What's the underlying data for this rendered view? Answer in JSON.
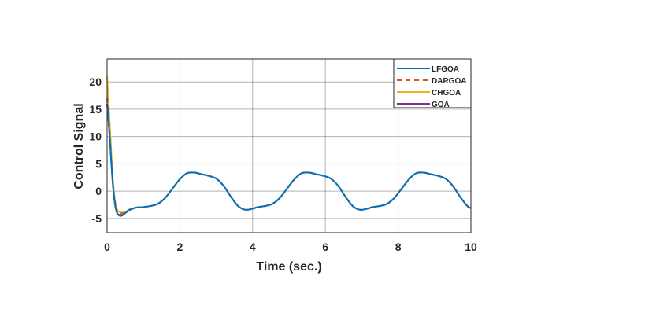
{
  "chart_data": {
    "type": "line",
    "title": "",
    "xlabel": "Time (sec.)",
    "ylabel": "Control Signal",
    "xlim": [
      0,
      10
    ],
    "ylim": [
      -7.6,
      24.2
    ],
    "xticks": [
      0,
      2,
      4,
      6,
      8,
      10
    ],
    "yticks": [
      -5,
      0,
      5,
      10,
      15,
      20
    ],
    "grid": true,
    "legend_position": "top-right",
    "x_initial": [
      0,
      0.05,
      0.1,
      0.15,
      0.2,
      0.25,
      0.3,
      0.4,
      0.5,
      0.6,
      0.7,
      0.8,
      0.9
    ],
    "x_tail": [
      1.0,
      1.2,
      1.4,
      1.6,
      1.8,
      2.0,
      2.2,
      2.4,
      2.6,
      2.8,
      3.0,
      3.2,
      3.4,
      3.6,
      3.8,
      4.0,
      4.15,
      4.35,
      4.55,
      4.75,
      4.95,
      5.15,
      5.35,
      5.55,
      5.75,
      5.95,
      6.15,
      6.35,
      6.55,
      6.75,
      6.95,
      7.15,
      7.3,
      7.5,
      7.7,
      7.9,
      8.1,
      8.3,
      8.5,
      8.7,
      8.9,
      9.1,
      9.3,
      9.5,
      9.7,
      9.9,
      10.0
    ],
    "y_tail_shared": [
      -2.9,
      -2.7,
      -2.3,
      -1.2,
      0.5,
      2.2,
      3.3,
      3.4,
      3.1,
      2.8,
      2.3,
      1.0,
      -1.0,
      -2.7,
      -3.4,
      -3.2,
      -2.9,
      -2.7,
      -2.3,
      -1.2,
      0.5,
      2.2,
      3.3,
      3.4,
      3.1,
      2.8,
      2.3,
      1.0,
      -1.0,
      -2.7,
      -3.4,
      -3.2,
      -2.9,
      -2.7,
      -2.3,
      -1.2,
      0.5,
      2.2,
      3.3,
      3.4,
      3.1,
      2.8,
      2.3,
      1.0,
      -1.0,
      -2.7,
      -3.1
    ],
    "series": [
      {
        "name": "LFGOA",
        "color": "#0072BD",
        "dash": false,
        "y_initial": [
          16,
          12,
          7,
          2,
          -1.5,
          -3.5,
          -4.2,
          -4.4,
          -4.0,
          -3.5,
          -3.2,
          -3.0,
          -2.95
        ]
      },
      {
        "name": "DARGOA",
        "color": "#D95319",
        "dash": true,
        "y_initial": [
          17,
          13,
          7.5,
          2.5,
          -1.2,
          -3.2,
          -4.0,
          -4.1,
          -3.9,
          -3.4,
          -3.2,
          -3.0,
          -2.95
        ]
      },
      {
        "name": "CHGOA",
        "color": "#EDB120",
        "dash": false,
        "y_initial": [
          21,
          15,
          9,
          3,
          -0.8,
          -2.8,
          -3.6,
          -3.9,
          -3.8,
          -3.4,
          -3.2,
          -3.0,
          -2.95
        ]
      },
      {
        "name": "GOA",
        "color": "#7E2F8E",
        "dash": false,
        "y_initial": [
          16,
          12,
          7,
          2,
          -1.5,
          -3.5,
          -4.3,
          -4.5,
          -4.0,
          -3.5,
          -3.2,
          -3.0,
          -2.95
        ]
      }
    ]
  }
}
